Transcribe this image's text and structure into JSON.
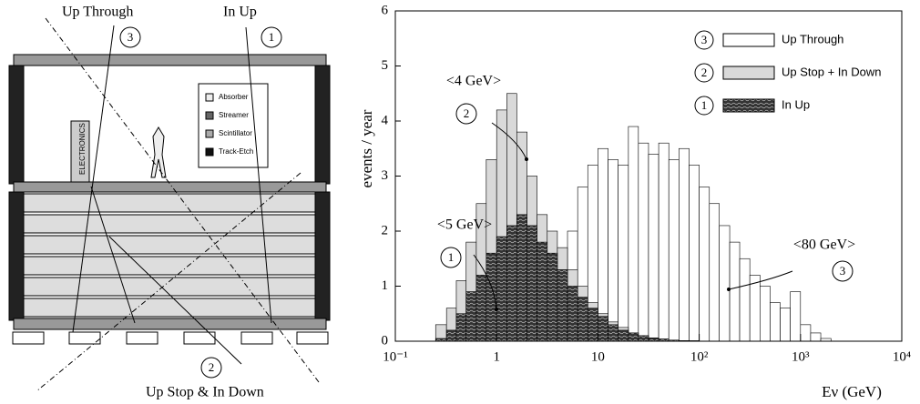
{
  "diagram": {
    "labels": [
      "Up Through",
      "In Up",
      "Up Stop & In Down"
    ],
    "circles": [
      "3",
      "1",
      "2"
    ],
    "legend": [
      "Absorber",
      "Streamer",
      "Scintillator",
      "Track-Etch"
    ],
    "electronics": "ELECTRONICS"
  },
  "chart_data": {
    "type": "histogram",
    "xlabel": "Eν (GeV)",
    "ylabel": "events / year",
    "log_x": true,
    "xlim": [
      0.1,
      10000
    ],
    "ylim": [
      0,
      6
    ],
    "xticks": [
      {
        "value": 0.1,
        "label": "10⁻¹"
      },
      1,
      10,
      {
        "value": 100,
        "label": "10²"
      },
      {
        "value": 1000,
        "label": "10³"
      },
      {
        "value": 10000,
        "label": "10⁴"
      }
    ],
    "yticks": [
      0,
      1,
      2,
      3,
      4,
      5,
      6
    ],
    "bins": [
      0.25,
      0.32,
      0.4,
      0.5,
      0.63,
      0.79,
      1,
      1.26,
      1.58,
      2,
      2.51,
      3.16,
      3.98,
      5.01,
      6.31,
      7.94,
      10,
      12.6,
      15.8,
      20,
      25.1,
      31.6,
      39.8,
      50.1,
      63.1,
      79.4,
      100,
      126,
      158,
      200,
      251,
      316,
      398,
      501,
      631,
      794,
      1000,
      1259,
      1585,
      2000
    ],
    "series": [
      {
        "name": "Up Through",
        "marker": "3",
        "color": "#ffffff",
        "values": [
          0,
          0,
          0,
          0,
          0,
          0,
          0.05,
          0.1,
          0.2,
          0.4,
          0.7,
          1.0,
          1.5,
          2.0,
          2.8,
          3.2,
          3.5,
          3.3,
          3.2,
          3.9,
          3.6,
          3.4,
          3.6,
          3.3,
          3.5,
          3.2,
          2.8,
          2.5,
          2.1,
          1.8,
          1.5,
          1.2,
          1.0,
          0.7,
          0.6,
          0.9,
          0.3,
          0.15,
          0.05
        ]
      },
      {
        "name": "Up Stop + In Down",
        "marker": "2",
        "color": "#d9d9d9",
        "values": [
          0.3,
          0.6,
          1.1,
          1.8,
          2.5,
          3.3,
          4.2,
          4.5,
          3.8,
          3.0,
          2.3,
          2.0,
          1.7,
          1.3,
          1.0,
          0.7,
          0.5,
          0.35,
          0.25,
          0.15,
          0.1,
          0.06,
          0.04,
          0.02,
          0.01,
          0.01,
          0,
          0,
          0,
          0,
          0,
          0,
          0,
          0,
          0,
          0,
          0,
          0,
          0
        ]
      },
      {
        "name": "In Up",
        "marker": "1",
        "color": "#333333",
        "values": [
          0.05,
          0.2,
          0.5,
          0.9,
          1.2,
          1.6,
          1.9,
          2.1,
          2.3,
          2.1,
          1.8,
          1.6,
          1.3,
          1.0,
          0.8,
          0.6,
          0.45,
          0.3,
          0.2,
          0.15,
          0.1,
          0.06,
          0.04,
          0.02,
          0.01,
          0,
          0,
          0,
          0,
          0,
          0,
          0,
          0,
          0,
          0,
          0,
          0,
          0,
          0
        ]
      }
    ],
    "annotations": [
      {
        "text": "<4 GeV>",
        "label": "2"
      },
      {
        "text": "<5 GeV>",
        "label": "1"
      },
      {
        "text": "<80 GeV>",
        "label": "3"
      }
    ]
  }
}
